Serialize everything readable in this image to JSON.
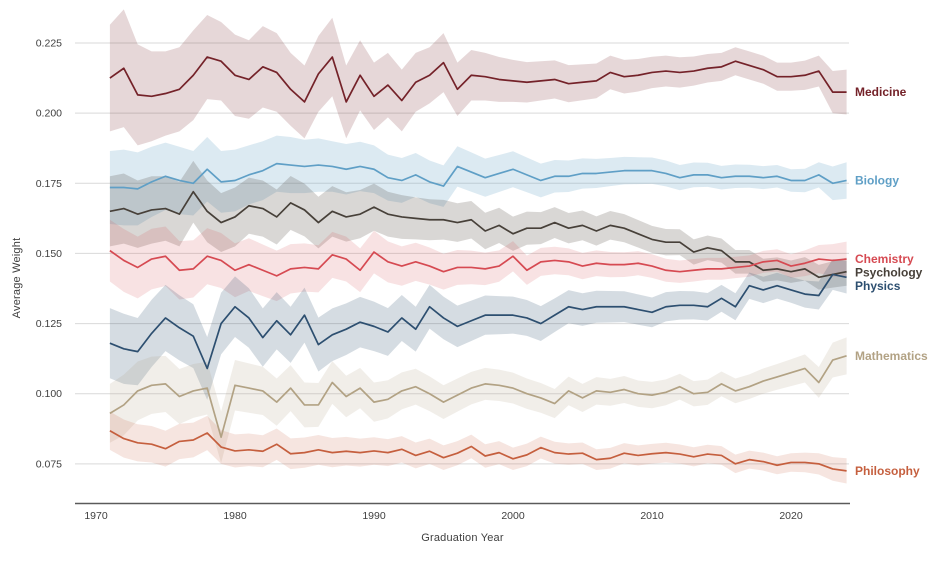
{
  "chart_data": {
    "type": "line",
    "title": "",
    "xlabel": "Graduation Year",
    "ylabel": "Average Weight",
    "x_ticks": [
      1970,
      1980,
      1990,
      2000,
      2010,
      2020
    ],
    "y_ticks": [
      0.075,
      0.1,
      0.125,
      0.15,
      0.175,
      0.2,
      0.225
    ],
    "ylim": [
      0.063,
      0.2375
    ],
    "xlim": [
      1969.5,
      2024.5
    ],
    "grid": "horizontal",
    "legend_position": "right-of-line-ends",
    "gridline_color": "#d9d9d9",
    "axis_line_color": "#5a5a5a",
    "tick_text_color": "#3f3f3f",
    "years": [
      1971,
      1972,
      1973,
      1974,
      1975,
      1976,
      1977,
      1978,
      1979,
      1980,
      1981,
      1982,
      1983,
      1984,
      1985,
      1986,
      1987,
      1988,
      1989,
      1990,
      1991,
      1992,
      1993,
      1994,
      1995,
      1996,
      1997,
      1998,
      1999,
      2000,
      2001,
      2002,
      2003,
      2004,
      2005,
      2006,
      2007,
      2008,
      2009,
      2010,
      2011,
      2012,
      2013,
      2014,
      2015,
      2016,
      2017,
      2018,
      2019,
      2020,
      2021,
      2022,
      2023,
      2024
    ],
    "series": [
      {
        "name": "Medicine",
        "color": "#742229",
        "band_color": "rgba(116,34,41,0.18)",
        "values": [
          0.2125,
          0.216,
          0.2065,
          0.206,
          0.207,
          0.2085,
          0.2135,
          0.22,
          0.2185,
          0.2135,
          0.212,
          0.2165,
          0.2145,
          0.2085,
          0.204,
          0.214,
          0.22,
          0.204,
          0.2135,
          0.206,
          0.21,
          0.2045,
          0.211,
          0.2135,
          0.218,
          0.2085,
          0.2135,
          0.213,
          0.212,
          0.2115,
          0.211,
          0.2115,
          0.212,
          0.2105,
          0.211,
          0.2115,
          0.2145,
          0.213,
          0.2135,
          0.2145,
          0.215,
          0.2145,
          0.215,
          0.216,
          0.2165,
          0.2185,
          0.217,
          0.2155,
          0.213,
          0.213,
          0.2135,
          0.215,
          0.2075,
          0.2075
        ],
        "band_halfwidth": [
          0.019,
          0.021,
          0.018,
          0.016,
          0.015,
          0.015,
          0.016,
          0.015,
          0.014,
          0.0145,
          0.014,
          0.0145,
          0.014,
          0.013,
          0.013,
          0.0135,
          0.014,
          0.013,
          0.0125,
          0.012,
          0.0115,
          0.011,
          0.0105,
          0.01,
          0.0105,
          0.0095,
          0.009,
          0.0085,
          0.008,
          0.0075,
          0.0072,
          0.007,
          0.0068,
          0.0066,
          0.0064,
          0.0062,
          0.006,
          0.006,
          0.0058,
          0.0056,
          0.0055,
          0.0054,
          0.0052,
          0.0051,
          0.005,
          0.005,
          0.005,
          0.005,
          0.005,
          0.005,
          0.0052,
          0.0055,
          0.0075,
          0.008
        ]
      },
      {
        "name": "Biology",
        "color": "#5f9fc6",
        "band_color": "rgba(95,159,198,0.22)",
        "values": [
          0.1735,
          0.1735,
          0.173,
          0.1755,
          0.1775,
          0.176,
          0.175,
          0.18,
          0.1755,
          0.176,
          0.178,
          0.1795,
          0.182,
          0.1815,
          0.181,
          0.1815,
          0.181,
          0.18,
          0.181,
          0.18,
          0.177,
          0.176,
          0.178,
          0.1755,
          0.174,
          0.181,
          0.179,
          0.177,
          0.1785,
          0.18,
          0.178,
          0.176,
          0.1775,
          0.1775,
          0.1785,
          0.1785,
          0.179,
          0.1795,
          0.1795,
          0.1795,
          0.1785,
          0.177,
          0.178,
          0.178,
          0.177,
          0.1775,
          0.1775,
          0.177,
          0.1775,
          0.176,
          0.176,
          0.178,
          0.175,
          0.176
        ],
        "band_halfwidth": [
          0.013,
          0.0135,
          0.013,
          0.0125,
          0.012,
          0.012,
          0.0115,
          0.0115,
          0.011,
          0.011,
          0.0105,
          0.0105,
          0.01,
          0.01,
          0.0095,
          0.0095,
          0.009,
          0.009,
          0.0088,
          0.0085,
          0.0082,
          0.008,
          0.0078,
          0.0076,
          0.0074,
          0.0072,
          0.007,
          0.0068,
          0.0066,
          0.0064,
          0.0062,
          0.006,
          0.0058,
          0.0056,
          0.0054,
          0.0052,
          0.005,
          0.0049,
          0.0048,
          0.0047,
          0.0046,
          0.0045,
          0.0044,
          0.0043,
          0.0042,
          0.0042,
          0.0041,
          0.0041,
          0.004,
          0.004,
          0.0042,
          0.0045,
          0.006,
          0.0065
        ]
      },
      {
        "name": "Psychology",
        "color": "#474039",
        "band_color": "rgba(80,74,66,0.22)",
        "values": [
          0.165,
          0.166,
          0.164,
          0.1655,
          0.166,
          0.164,
          0.172,
          0.165,
          0.161,
          0.163,
          0.167,
          0.166,
          0.163,
          0.168,
          0.1655,
          0.161,
          0.165,
          0.163,
          0.164,
          0.1665,
          0.164,
          0.163,
          0.1625,
          0.162,
          0.162,
          0.161,
          0.162,
          0.158,
          0.16,
          0.157,
          0.159,
          0.159,
          0.161,
          0.159,
          0.16,
          0.158,
          0.16,
          0.159,
          0.157,
          0.155,
          0.154,
          0.154,
          0.1505,
          0.152,
          0.151,
          0.147,
          0.147,
          0.144,
          0.1445,
          0.1435,
          0.1445,
          0.1415,
          0.1425,
          0.1435
        ],
        "band_halfwidth": [
          0.0125,
          0.0125,
          0.012,
          0.012,
          0.0115,
          0.0115,
          0.011,
          0.011,
          0.0105,
          0.0105,
          0.01,
          0.01,
          0.0098,
          0.0096,
          0.0094,
          0.0092,
          0.009,
          0.0088,
          0.0086,
          0.0084,
          0.008,
          0.0078,
          0.0075,
          0.0073,
          0.0071,
          0.0069,
          0.0067,
          0.0065,
          0.0063,
          0.0061,
          0.0059,
          0.0057,
          0.0055,
          0.0054,
          0.0053,
          0.0052,
          0.0051,
          0.005,
          0.0049,
          0.0048,
          0.0047,
          0.0046,
          0.0045,
          0.0044,
          0.0043,
          0.0042,
          0.0042,
          0.0041,
          0.0041,
          0.004,
          0.0042,
          0.0044,
          0.0047,
          0.005
        ]
      },
      {
        "name": "Chemistry",
        "color": "#d64a52",
        "band_color": "rgba(214,74,82,0.16)",
        "values": [
          0.151,
          0.1475,
          0.145,
          0.148,
          0.149,
          0.144,
          0.1445,
          0.149,
          0.1475,
          0.144,
          0.146,
          0.144,
          0.142,
          0.1445,
          0.145,
          0.1445,
          0.1495,
          0.148,
          0.144,
          0.1505,
          0.147,
          0.1455,
          0.147,
          0.1455,
          0.1435,
          0.145,
          0.145,
          0.1445,
          0.1455,
          0.149,
          0.144,
          0.147,
          0.1475,
          0.147,
          0.1455,
          0.1465,
          0.146,
          0.146,
          0.1465,
          0.1455,
          0.144,
          0.1435,
          0.144,
          0.1445,
          0.1445,
          0.145,
          0.1455,
          0.147,
          0.1475,
          0.1455,
          0.1465,
          0.148,
          0.1475,
          0.148
        ],
        "band_halfwidth": [
          0.011,
          0.0112,
          0.011,
          0.0108,
          0.0106,
          0.0104,
          0.0102,
          0.01,
          0.0098,
          0.0096,
          0.0094,
          0.0092,
          0.009,
          0.0088,
          0.0086,
          0.0084,
          0.0082,
          0.008,
          0.0078,
          0.0076,
          0.0073,
          0.007,
          0.0068,
          0.0066,
          0.0064,
          0.0062,
          0.006,
          0.0058,
          0.0056,
          0.0054,
          0.0052,
          0.005,
          0.0049,
          0.0048,
          0.0047,
          0.0046,
          0.0045,
          0.0044,
          0.0043,
          0.0042,
          0.0041,
          0.004,
          0.004,
          0.0039,
          0.0039,
          0.0038,
          0.0038,
          0.0039,
          0.004,
          0.0042,
          0.0046,
          0.005,
          0.0058,
          0.0062
        ]
      },
      {
        "name": "Physics",
        "color": "#2d4f70",
        "band_color": "rgba(45,79,112,0.20)",
        "values": [
          0.118,
          0.116,
          0.115,
          0.1215,
          0.127,
          0.1235,
          0.1205,
          0.109,
          0.125,
          0.131,
          0.127,
          0.12,
          0.126,
          0.121,
          0.128,
          0.1175,
          0.121,
          0.123,
          0.1255,
          0.124,
          0.122,
          0.127,
          0.123,
          0.131,
          0.127,
          0.124,
          0.126,
          0.128,
          0.128,
          0.128,
          0.127,
          0.125,
          0.128,
          0.131,
          0.13,
          0.131,
          0.131,
          0.131,
          0.13,
          0.129,
          0.131,
          0.1315,
          0.1315,
          0.131,
          0.134,
          0.131,
          0.1385,
          0.137,
          0.1385,
          0.137,
          0.1355,
          0.135,
          0.1425,
          0.1415
        ],
        "band_halfwidth": [
          0.0125,
          0.0125,
          0.012,
          0.012,
          0.0118,
          0.0116,
          0.0114,
          0.0112,
          0.011,
          0.0108,
          0.0106,
          0.0104,
          0.0102,
          0.01,
          0.0098,
          0.0096,
          0.0094,
          0.0092,
          0.009,
          0.0088,
          0.0085,
          0.0082,
          0.008,
          0.0078,
          0.0076,
          0.0074,
          0.0072,
          0.007,
          0.0068,
          0.0066,
          0.0064,
          0.0062,
          0.006,
          0.0059,
          0.0058,
          0.0057,
          0.0056,
          0.0055,
          0.0054,
          0.0053,
          0.0052,
          0.0051,
          0.005,
          0.0049,
          0.0048,
          0.0048,
          0.0047,
          0.0047,
          0.0046,
          0.0046,
          0.0048,
          0.005,
          0.0055,
          0.0058
        ]
      },
      {
        "name": "Mathematics",
        "color": "#b2a284",
        "band_color": "rgba(178,162,132,0.18)",
        "values": [
          0.093,
          0.096,
          0.101,
          0.103,
          0.1035,
          0.099,
          0.101,
          0.102,
          0.0845,
          0.103,
          0.102,
          0.101,
          0.097,
          0.102,
          0.096,
          0.096,
          0.104,
          0.099,
          0.102,
          0.097,
          0.098,
          0.101,
          0.1025,
          0.1,
          0.097,
          0.0995,
          0.102,
          0.1035,
          0.103,
          0.102,
          0.1,
          0.0985,
          0.0965,
          0.101,
          0.0985,
          0.101,
          0.1005,
          0.1015,
          0.1,
          0.0995,
          0.1005,
          0.1025,
          0.1,
          0.1005,
          0.1035,
          0.101,
          0.1025,
          0.1045,
          0.106,
          0.1075,
          0.109,
          0.104,
          0.112,
          0.1135
        ],
        "band_halfwidth": [
          0.0105,
          0.0108,
          0.0105,
          0.0102,
          0.01,
          0.0098,
          0.0096,
          0.0094,
          0.0092,
          0.009,
          0.0088,
          0.0086,
          0.0084,
          0.0082,
          0.008,
          0.0078,
          0.0076,
          0.0074,
          0.0072,
          0.007,
          0.0068,
          0.0066,
          0.0064,
          0.0062,
          0.006,
          0.0059,
          0.0058,
          0.0057,
          0.0056,
          0.0055,
          0.0054,
          0.0053,
          0.0052,
          0.0051,
          0.005,
          0.0049,
          0.0048,
          0.0048,
          0.0047,
          0.0047,
          0.0046,
          0.0046,
          0.0045,
          0.0045,
          0.0044,
          0.0044,
          0.0044,
          0.0045,
          0.0046,
          0.0048,
          0.005,
          0.0055,
          0.0062,
          0.0066
        ]
      },
      {
        "name": "Philosophy",
        "color": "#c55f3e",
        "band_color": "rgba(197,95,62,0.16)",
        "values": [
          0.0868,
          0.084,
          0.0825,
          0.082,
          0.0804,
          0.083,
          0.0835,
          0.086,
          0.081,
          0.0796,
          0.08,
          0.0795,
          0.082,
          0.0786,
          0.079,
          0.08,
          0.079,
          0.0795,
          0.079,
          0.0796,
          0.079,
          0.0802,
          0.078,
          0.0795,
          0.0772,
          0.0788,
          0.0812,
          0.0778,
          0.079,
          0.0768,
          0.0782,
          0.0808,
          0.079,
          0.0785,
          0.0788,
          0.0765,
          0.077,
          0.0788,
          0.078,
          0.0786,
          0.079,
          0.0785,
          0.0775,
          0.0785,
          0.078,
          0.075,
          0.0765,
          0.0758,
          0.0745,
          0.0755,
          0.0755,
          0.075,
          0.0732,
          0.0725
        ],
        "band_halfwidth": [
          0.0068,
          0.0068,
          0.0066,
          0.0065,
          0.0064,
          0.0063,
          0.0062,
          0.0061,
          0.006,
          0.0059,
          0.0058,
          0.0057,
          0.0056,
          0.0055,
          0.0054,
          0.0053,
          0.0052,
          0.0051,
          0.005,
          0.0049,
          0.0048,
          0.0047,
          0.0046,
          0.0045,
          0.0044,
          0.0043,
          0.0042,
          0.0042,
          0.0041,
          0.004,
          0.004,
          0.0039,
          0.0039,
          0.0038,
          0.0038,
          0.0037,
          0.0037,
          0.0036,
          0.0036,
          0.0035,
          0.0035,
          0.0034,
          0.0034,
          0.0033,
          0.0033,
          0.0033,
          0.0032,
          0.0032,
          0.0032,
          0.0033,
          0.0035,
          0.0038,
          0.0042,
          0.0045
        ]
      }
    ]
  }
}
